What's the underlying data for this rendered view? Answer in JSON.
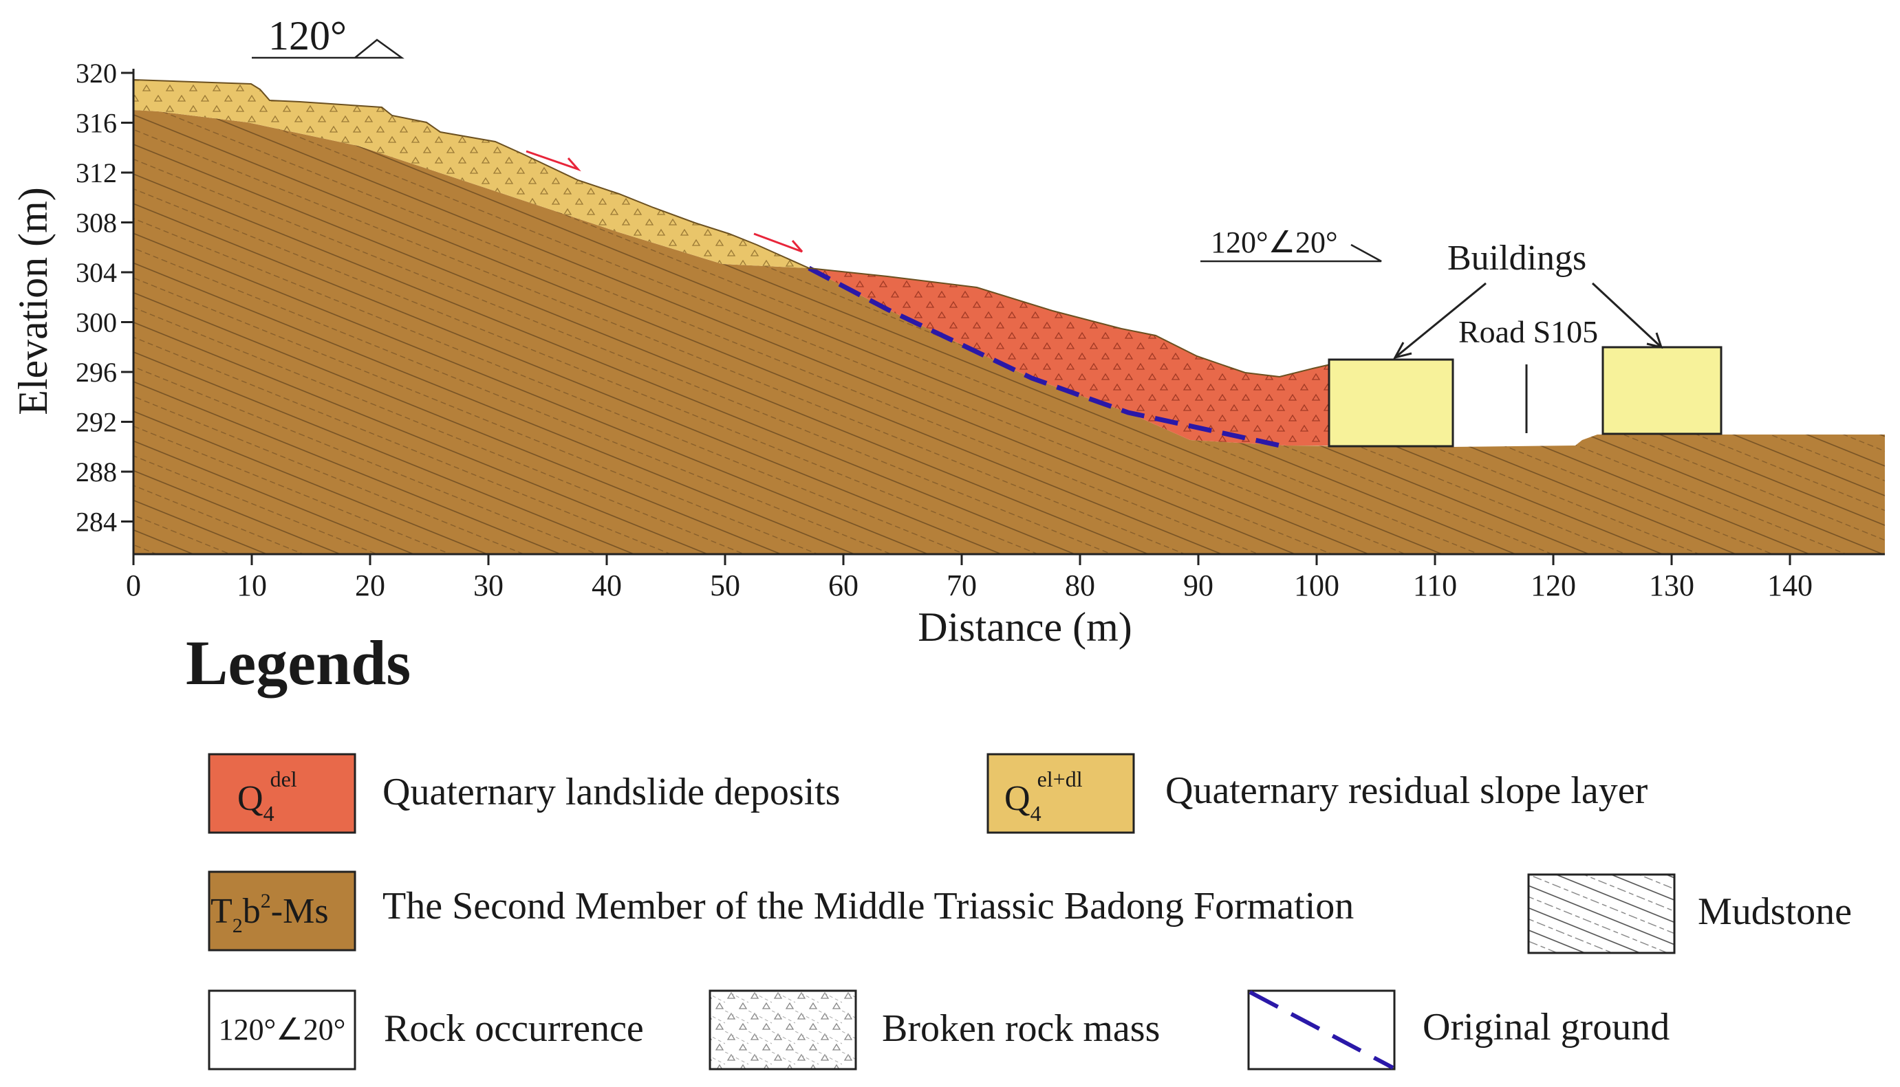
{
  "profile_strike": "120°",
  "rock_attitude_label": "120°∠20°",
  "annotations": {
    "buildings": "Buildings",
    "road": "Road S105"
  },
  "axes": {
    "xlabel": "Distance (m)",
    "ylabel": "Elevation (m)",
    "xticks": [
      "0",
      "10",
      "20",
      "30",
      "40",
      "50",
      "60",
      "70",
      "80",
      "90",
      "100",
      "110",
      "120",
      "130",
      "140"
    ],
    "yticks": [
      "320",
      "316",
      "312",
      "308",
      "304",
      "300",
      "296",
      "292",
      "288",
      "284"
    ]
  },
  "legend": {
    "title": "Legends",
    "items": [
      {
        "symbol_main": "Q",
        "symbol_sub": "4",
        "symbol_sup": "del",
        "label": "Quaternary landslide deposits",
        "color": "#e8694a"
      },
      {
        "symbol_main": "Q",
        "symbol_sub": "4",
        "symbol_sup": "el+dl",
        "label": "Quaternary residual slope layer",
        "color": "#e9c56a"
      },
      {
        "symbol_main": "T",
        "symbol_sub": "2",
        "symbol_mid": "b",
        "symbol_sup": "2",
        "symbol_tail": "-Ms",
        "label": "The Second Member of the Middle Triassic Badong Formation",
        "color": "#b5803a"
      },
      {
        "symbol_icon": "mudstone-pattern-icon",
        "label": "Mudstone"
      },
      {
        "symbol_text": "120°∠20°",
        "label": "Rock occurrence"
      },
      {
        "symbol_icon": "broken-rock-pattern-icon",
        "label": "Broken rock mass"
      },
      {
        "symbol_icon": "dashed-line-icon",
        "label": "Original ground",
        "color": "#2a18a8"
      }
    ]
  },
  "colors": {
    "landslide": "#e8694a",
    "residual": "#e9c56a",
    "bedrock": "#b5803a",
    "building": "#f7f29a",
    "original_ground": "#2a18a8",
    "slip_arrow": "#e8253a"
  }
}
